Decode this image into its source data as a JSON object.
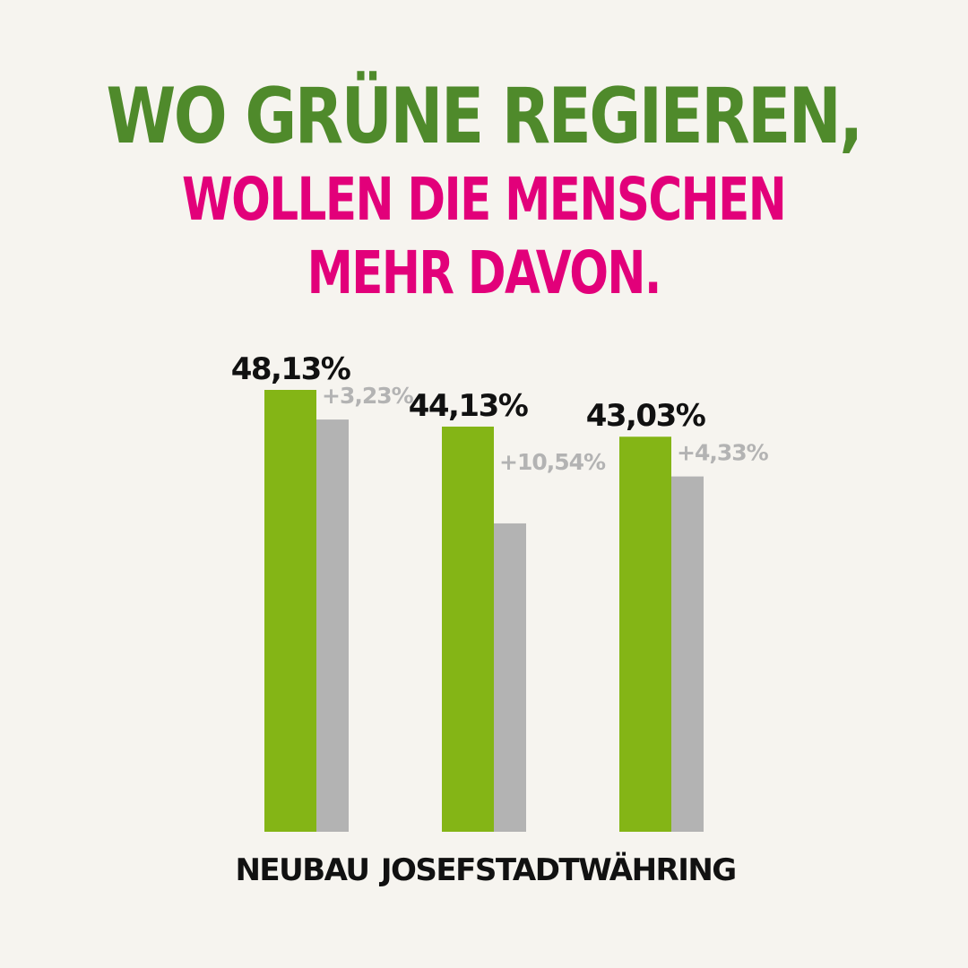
{
  "headline": {
    "line1": "WO GRÜNE REGIEREN,",
    "line2": "WOLLEN DIE MENSCHEN",
    "line3": "MEHR DAVON."
  },
  "colors": {
    "background": "#f6f4ef",
    "headline_green": "#4f8a2b",
    "headline_magenta": "#e2007a",
    "bar_green": "#84b516",
    "bar_gray": "#b3b3b3",
    "delta_text": "#b3b3b3",
    "label_text": "#111111"
  },
  "chart_data": {
    "type": "bar",
    "title": "",
    "xlabel": "",
    "ylabel": "",
    "ylim": [
      0,
      48.13
    ],
    "grid": false,
    "categories": [
      "NEUBAU",
      "JOSEFSTADT",
      "WÄHRING"
    ],
    "series": [
      {
        "values": [
          48.13,
          44.13,
          43.03
        ],
        "labels": [
          "48,13%",
          "44,13%",
          "43,03%"
        ]
      },
      {
        "values": [
          44.9,
          33.59,
          38.7
        ]
      }
    ],
    "deltas": [
      {
        "value": 3.23,
        "label": "+3,23%"
      },
      {
        "value": 10.54,
        "label": "+10,54%"
      },
      {
        "value": 4.33,
        "label": "+4,33%"
      }
    ]
  }
}
